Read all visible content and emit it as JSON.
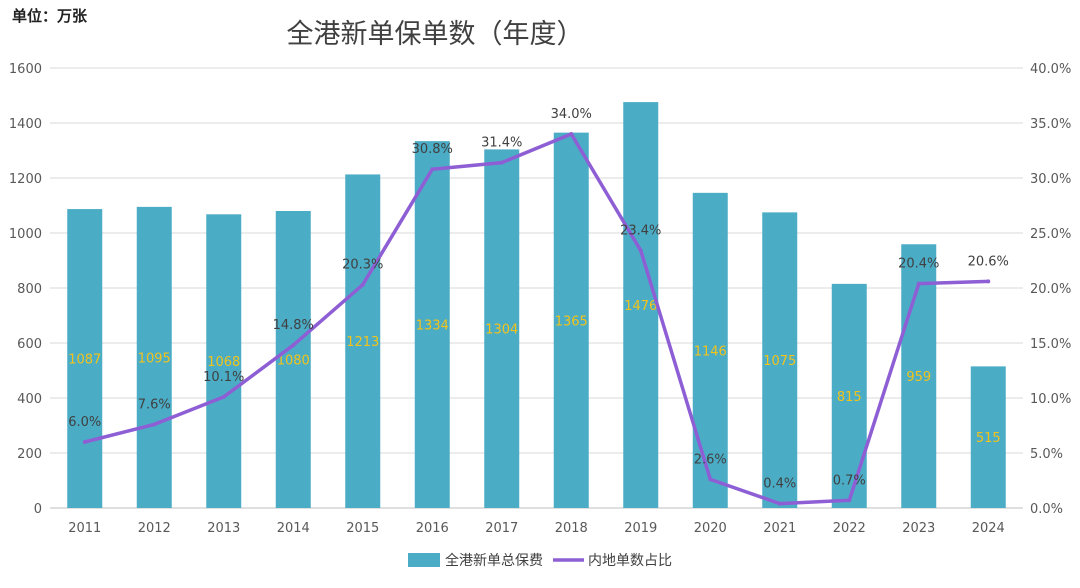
{
  "chart_data": {
    "type": "bar+line",
    "title": "全港新单保单数（年度）",
    "unit_label": "单位：万张",
    "categories": [
      "2011",
      "2012",
      "2013",
      "2014",
      "2015",
      "2016",
      "2017",
      "2018",
      "2019",
      "2020",
      "2021",
      "2022",
      "2023",
      "2024"
    ],
    "series": [
      {
        "name": "全港新单总保费",
        "type": "bar",
        "axis": "left",
        "color": "#4bacc6",
        "label_color": "#f2c31a",
        "values": [
          1087,
          1095,
          1068,
          1080,
          1213,
          1334,
          1304,
          1365,
          1476,
          1146,
          1075,
          815,
          959,
          515
        ]
      },
      {
        "name": "内地单数占比",
        "type": "line",
        "axis": "right",
        "color": "#8e5fd4",
        "label_color": "#404040",
        "values": [
          6.0,
          7.6,
          10.1,
          14.8,
          20.3,
          30.8,
          31.4,
          34.0,
          23.4,
          2.6,
          0.4,
          0.7,
          20.4,
          20.6
        ],
        "labels": [
          "6.0%",
          "7.6%",
          "10.1%",
          "14.8%",
          "20.3%",
          "30.8%",
          "31.4%",
          "34.0%",
          "23.4%",
          "2.6%",
          "0.4%",
          "0.7%",
          "20.4%",
          "20.6%"
        ]
      }
    ],
    "left_axis": {
      "min": 0,
      "max": 1600,
      "ticks": [
        "0",
        "200",
        "400",
        "600",
        "800",
        "1000",
        "1200",
        "1400",
        "1600"
      ]
    },
    "right_axis": {
      "min": 0,
      "max": 40,
      "ticks": [
        "0.0%",
        "5.0%",
        "10.0%",
        "15.0%",
        "20.0%",
        "25.0%",
        "30.0%",
        "35.0%",
        "40.0%"
      ]
    },
    "grid": true,
    "legend_position": "bottom-center"
  }
}
